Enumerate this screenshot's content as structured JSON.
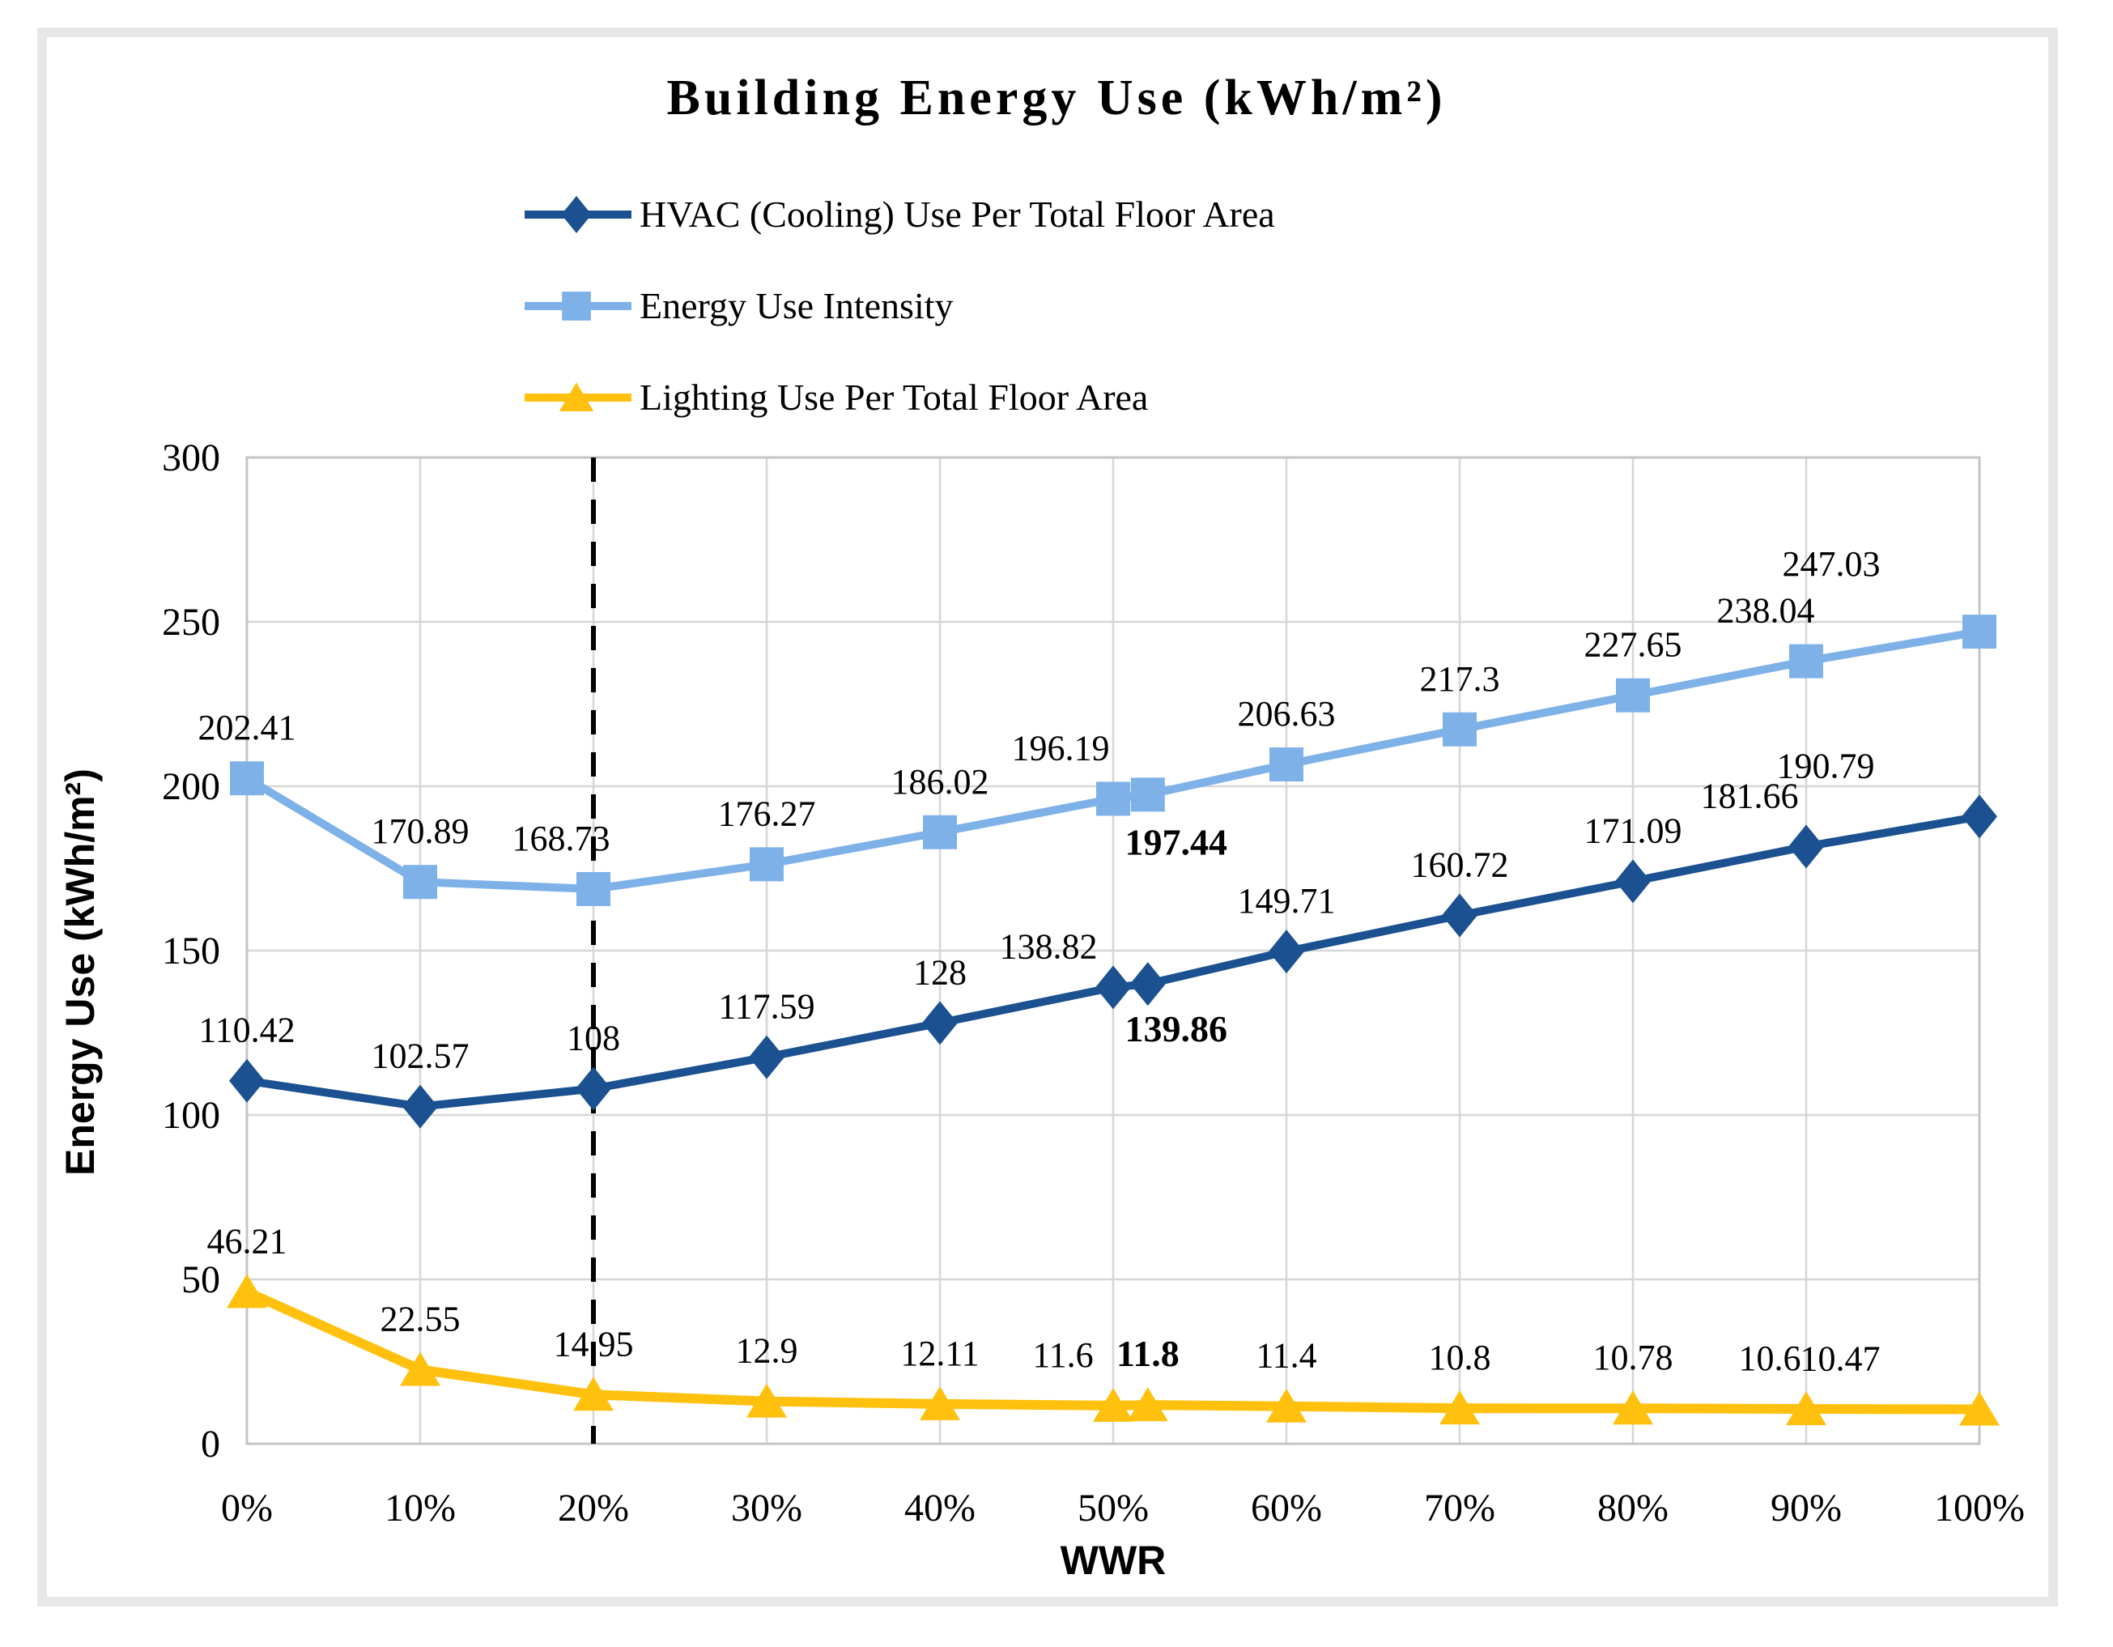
{
  "figure": {
    "title": "Building Energy Use (kWh/m²)",
    "y_axis_title": "Energy Use (kWh/m²)",
    "x_axis_title": "WWR"
  },
  "colors": {
    "hvac": "#1B5191",
    "eui": "#7FB1E9",
    "lighting": "#FFC10E",
    "grid": "#D6D6D6",
    "plot_border": "#C4C4C4",
    "reference_line": "#000000",
    "frame": "#E7E7E7"
  },
  "legend": {
    "items": [
      {
        "id": "hvac",
        "marker": "diamond",
        "label": "HVAC (Cooling) Use Per Total Floor Area"
      },
      {
        "id": "eui",
        "marker": "square",
        "label": "Energy Use Intensity"
      },
      {
        "id": "light",
        "marker": "triangle",
        "label": "Lighting Use Per Total Floor Area"
      }
    ]
  },
  "chart_data": {
    "type": "line",
    "title": "Building Energy Use (kWh/m²)",
    "xlabel": "WWR",
    "ylabel": "Energy Use (kWh/m²)",
    "categories": [
      "0%",
      "10%",
      "20%",
      "30%",
      "40%",
      "50%",
      "60%",
      "70%",
      "80%",
      "90%",
      "100%"
    ],
    "x_values": [
      0,
      10,
      20,
      30,
      40,
      50,
      60,
      70,
      80,
      90,
      100
    ],
    "ylim": [
      0,
      300
    ],
    "y_ticks": [
      0,
      50,
      100,
      150,
      200,
      250,
      300
    ],
    "grid": true,
    "legend_position": "top",
    "reference_line": {
      "x": 20,
      "style": "dashed"
    },
    "series": [
      {
        "id": "eui",
        "name": "Energy Use Intensity",
        "marker": "square",
        "values": [
          202.41,
          170.89,
          168.73,
          176.27,
          186.02,
          196.19,
          206.63,
          217.3,
          227.65,
          238.04,
          247.03
        ],
        "labels": [
          "202.41",
          "170.89",
          "168.73",
          "176.27",
          "186.02",
          "196.19",
          "206.63",
          "217.3",
          "227.65",
          "238.04",
          "247.03"
        ]
      },
      {
        "id": "hvac",
        "name": "HVAC (Cooling) Use Per Total Floor Area",
        "marker": "diamond",
        "values": [
          110.42,
          102.57,
          108,
          117.59,
          128,
          138.82,
          149.71,
          160.72,
          171.09,
          181.66,
          190.79
        ],
        "labels": [
          "110.42",
          "102.57",
          "108",
          "117.59",
          "128",
          "138.82",
          "149.71",
          "160.72",
          "171.09",
          "181.66",
          "190.79"
        ]
      },
      {
        "id": "light",
        "name": "Lighting Use Per Total Floor Area",
        "marker": "triangle",
        "values": [
          46.21,
          22.55,
          14.95,
          12.9,
          12.11,
          11.6,
          11.4,
          10.8,
          10.78,
          10.6,
          10.47
        ],
        "labels": [
          "46.21",
          "22.55",
          "14.95",
          "12.9",
          "12.11",
          "11.6",
          "11.4",
          "10.8",
          "10.78",
          "10.6",
          "10.47"
        ]
      }
    ],
    "highlight_points": [
      {
        "series_id": "eui",
        "x": 52,
        "value": 197.44,
        "label": "197.44",
        "bold": true
      },
      {
        "series_id": "hvac",
        "x": 52,
        "value": 139.86,
        "label": "139.86",
        "bold": true
      },
      {
        "series_id": "light",
        "x": 52,
        "value": 11.8,
        "label": "11.8",
        "bold": true
      }
    ]
  }
}
